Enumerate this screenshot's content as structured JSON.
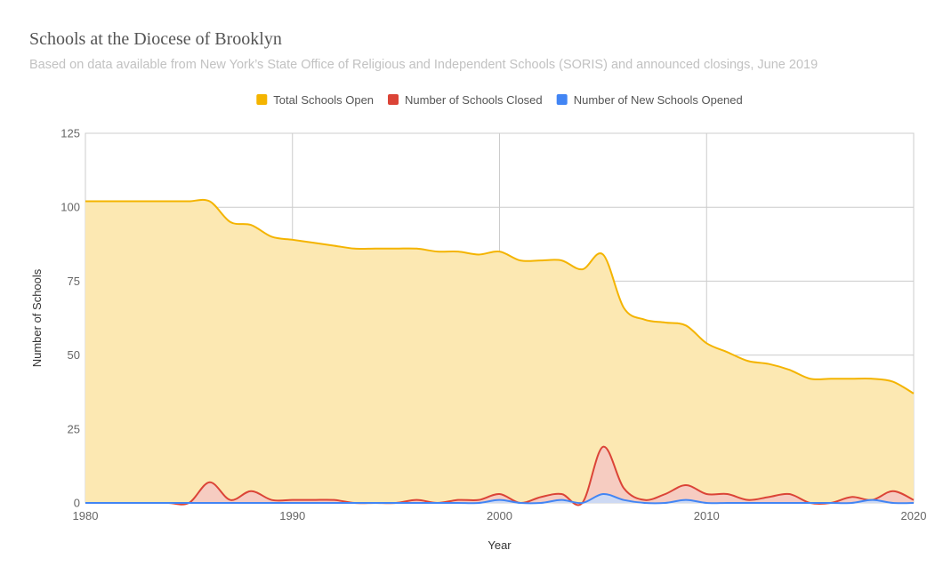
{
  "chart_data": {
    "type": "area",
    "title": "Schools at the Diocese of Brooklyn",
    "subtitle": "Based on data available from New York’s State Office of Religious and Independent Schools (SORIS) and announced closings, June 2019",
    "xlabel": "Year",
    "ylabel": "Number of Schools",
    "xlim": [
      1980,
      2020
    ],
    "ylim": [
      0,
      125
    ],
    "xticks": [
      1980,
      1990,
      2000,
      2010,
      2020
    ],
    "yticks": [
      0,
      25,
      50,
      75,
      100,
      125
    ],
    "grid": true,
    "legend_position": "top",
    "x": [
      1980,
      1981,
      1982,
      1983,
      1984,
      1985,
      1986,
      1987,
      1988,
      1989,
      1990,
      1991,
      1992,
      1993,
      1994,
      1995,
      1996,
      1997,
      1998,
      1999,
      2000,
      2001,
      2002,
      2003,
      2004,
      2005,
      2006,
      2007,
      2008,
      2009,
      2010,
      2011,
      2012,
      2013,
      2014,
      2015,
      2016,
      2017,
      2018,
      2019,
      2020
    ],
    "series": [
      {
        "name": "Total Schools Open",
        "color": "#f4b400",
        "fill": "#fce8b2",
        "values": [
          102,
          102,
          102,
          102,
          102,
          102,
          102,
          95,
          94,
          90,
          89,
          88,
          87,
          86,
          86,
          86,
          86,
          85,
          85,
          84,
          85,
          82,
          82,
          82,
          79,
          84,
          66,
          62,
          61,
          60,
          54,
          51,
          48,
          47,
          45,
          42,
          42,
          42,
          42,
          41,
          37
        ]
      },
      {
        "name": "Number of Schools Closed",
        "color": "#db4437",
        "fill": "#f4c7c3",
        "values": [
          0,
          0,
          0,
          0,
          0,
          0,
          7,
          1,
          4,
          1,
          1,
          1,
          1,
          0,
          0,
          0,
          1,
          0,
          1,
          1,
          3,
          0,
          2,
          3,
          0,
          19,
          5,
          1,
          3,
          6,
          3,
          3,
          1,
          2,
          3,
          0,
          0,
          2,
          1,
          4,
          1
        ]
      },
      {
        "name": "Number of New Schools Opened",
        "color": "#4285f4",
        "fill": "#c6dafc",
        "values": [
          0,
          0,
          0,
          0,
          0,
          0,
          0,
          0,
          0,
          0,
          0,
          0,
          0,
          0,
          0,
          0,
          0,
          0,
          0,
          0,
          1,
          0,
          0,
          1,
          0,
          3,
          1,
          0,
          0,
          1,
          0,
          0,
          0,
          0,
          0,
          0,
          0,
          0,
          1,
          0,
          0
        ]
      }
    ]
  }
}
